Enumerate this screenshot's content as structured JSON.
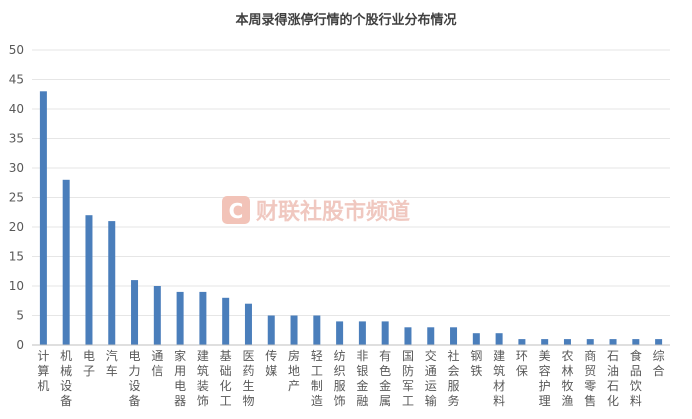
{
  "chart_data": {
    "type": "bar",
    "title": "本周录得涨停行情的个股行业分布情况",
    "xlabel": "",
    "ylabel": "",
    "ylim": [
      0,
      50
    ],
    "yticks": [
      0,
      5,
      10,
      15,
      20,
      25,
      30,
      35,
      40,
      45,
      50
    ],
    "grid": true,
    "legend": "none",
    "bar_color": "#4a7ebb",
    "categories": [
      "计算机",
      "机械设备",
      "电子",
      "汽车",
      "电力设备",
      "通信",
      "家用电器",
      "建筑装饰",
      "基础化工",
      "医药生物",
      "传媒",
      "房地产",
      "轻工制造",
      "纺织服饰",
      "非银金融",
      "有色金属",
      "国防军工",
      "交通运输",
      "社会服务",
      "钢铁",
      "建筑材料",
      "环保",
      "美容护理",
      "农林牧渔",
      "商贸零售",
      "石油石化",
      "食品饮料",
      "综合"
    ],
    "values": [
      43,
      28,
      22,
      21,
      11,
      10,
      9,
      9,
      8,
      7,
      5,
      5,
      5,
      4,
      4,
      4,
      3,
      3,
      3,
      2,
      2,
      1,
      1,
      1,
      1,
      1,
      1,
      1
    ]
  },
  "watermark": {
    "text": "财联社股市频道",
    "logo_color": "#e8a090"
  }
}
